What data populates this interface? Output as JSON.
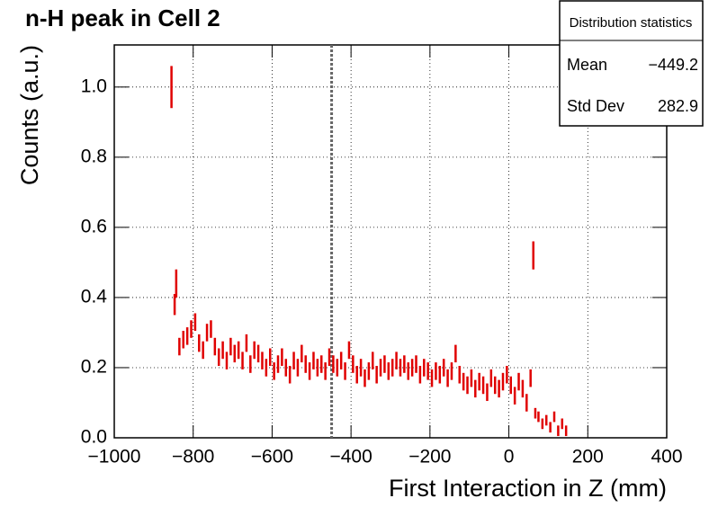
{
  "chart_data": {
    "type": "errorbar",
    "title": "n-H peak in Cell 2",
    "x_label": "First Interaction in Z (mm)",
    "y_label": "Counts (a.u.)",
    "xlim": [
      -1000,
      400
    ],
    "ylim": [
      0,
      1.12
    ],
    "xticks": [
      {
        "value": -1000,
        "label": "−1000"
      },
      {
        "value": -800,
        "label": "−800"
      },
      {
        "value": -600,
        "label": "−600"
      },
      {
        "value": -400,
        "label": "−400"
      },
      {
        "value": -200,
        "label": "−200"
      },
      0,
      200,
      400
    ],
    "yticks": [
      {
        "value": 0,
        "label": "0.0"
      },
      {
        "value": 0.2,
        "label": "0.2"
      },
      {
        "value": 0.4,
        "label": "0.4"
      },
      {
        "value": 0.6,
        "label": "0.6"
      },
      {
        "value": 0.8,
        "label": "0.8"
      },
      {
        "value": 1.0,
        "label": "1.0"
      }
    ],
    "grid": true,
    "color": "#e00000",
    "x": [
      -855,
      -847,
      -843,
      -835,
      -825,
      -815,
      -805,
      -795,
      -785,
      -775,
      -765,
      -755,
      -745,
      -735,
      -725,
      -715,
      -705,
      -695,
      -685,
      -675,
      -665,
      -655,
      -645,
      -635,
      -625,
      -615,
      -605,
      -595,
      -585,
      -575,
      -565,
      -555,
      -545,
      -535,
      -525,
      -515,
      -505,
      -495,
      -485,
      -475,
      -465,
      -455,
      -445,
      -435,
      -425,
      -415,
      -405,
      -395,
      -385,
      -375,
      -365,
      -355,
      -345,
      -335,
      -325,
      -315,
      -305,
      -295,
      -285,
      -275,
      -265,
      -255,
      -245,
      -235,
      -225,
      -215,
      -205,
      -195,
      -185,
      -175,
      -165,
      -155,
      -145,
      -135,
      -125,
      -115,
      -105,
      -95,
      -85,
      -75,
      -65,
      -55,
      -45,
      -35,
      -25,
      -15,
      -5,
      5,
      15,
      25,
      35,
      45,
      55,
      62,
      67,
      75,
      85,
      95,
      105,
      115,
      125,
      135,
      145
    ],
    "values": [
      1.0,
      0.38,
      0.44,
      0.26,
      0.28,
      0.29,
      0.31,
      0.33,
      0.27,
      0.25,
      0.3,
      0.31,
      0.26,
      0.23,
      0.25,
      0.22,
      0.26,
      0.24,
      0.25,
      0.22,
      0.27,
      0.21,
      0.25,
      0.24,
      0.22,
      0.2,
      0.23,
      0.19,
      0.21,
      0.23,
      0.2,
      0.18,
      0.22,
      0.2,
      0.24,
      0.21,
      0.19,
      0.22,
      0.2,
      0.21,
      0.19,
      0.23,
      0.21,
      0.2,
      0.22,
      0.19,
      0.25,
      0.21,
      0.18,
      0.2,
      0.17,
      0.19,
      0.22,
      0.18,
      0.2,
      0.21,
      0.19,
      0.2,
      0.22,
      0.2,
      0.21,
      0.19,
      0.2,
      0.21,
      0.18,
      0.2,
      0.19,
      0.17,
      0.19,
      0.18,
      0.2,
      0.17,
      0.19,
      0.24,
      0.18,
      0.16,
      0.15,
      0.17,
      0.14,
      0.16,
      0.15,
      0.13,
      0.17,
      0.15,
      0.14,
      0.16,
      0.18,
      0.15,
      0.12,
      0.16,
      0.14,
      0.1,
      0.17,
      0.52,
      0.07,
      0.06,
      0.04,
      0.05,
      0.03,
      0.06,
      0.02,
      0.04,
      0.02
    ],
    "errors": [
      0.06,
      0.03,
      0.04,
      0.025,
      0.025,
      0.025,
      0.025,
      0.025,
      0.025,
      0.025,
      0.025,
      0.025,
      0.025,
      0.025,
      0.025,
      0.025,
      0.025,
      0.025,
      0.025,
      0.025,
      0.025,
      0.025,
      0.025,
      0.025,
      0.025,
      0.025,
      0.025,
      0.025,
      0.025,
      0.025,
      0.025,
      0.025,
      0.025,
      0.025,
      0.025,
      0.025,
      0.025,
      0.025,
      0.025,
      0.025,
      0.025,
      0.025,
      0.025,
      0.025,
      0.025,
      0.025,
      0.025,
      0.025,
      0.025,
      0.025,
      0.025,
      0.025,
      0.025,
      0.025,
      0.025,
      0.025,
      0.025,
      0.025,
      0.025,
      0.025,
      0.025,
      0.025,
      0.025,
      0.025,
      0.025,
      0.025,
      0.025,
      0.025,
      0.025,
      0.025,
      0.025,
      0.025,
      0.025,
      0.025,
      0.025,
      0.025,
      0.025,
      0.025,
      0.025,
      0.025,
      0.025,
      0.025,
      0.025,
      0.025,
      0.025,
      0.025,
      0.025,
      0.025,
      0.025,
      0.025,
      0.025,
      0.025,
      0.025,
      0.04,
      0.015,
      0.015,
      0.015,
      0.015,
      0.015,
      0.015,
      0.015,
      0.015,
      0.015
    ],
    "stats": {
      "title": "Distribution statistics",
      "entries": [
        {
          "name": "Mean",
          "value": -449.2,
          "label": "−449.2"
        },
        {
          "name": "Std Dev",
          "value": 282.9,
          "label": "282.9"
        }
      ]
    }
  }
}
